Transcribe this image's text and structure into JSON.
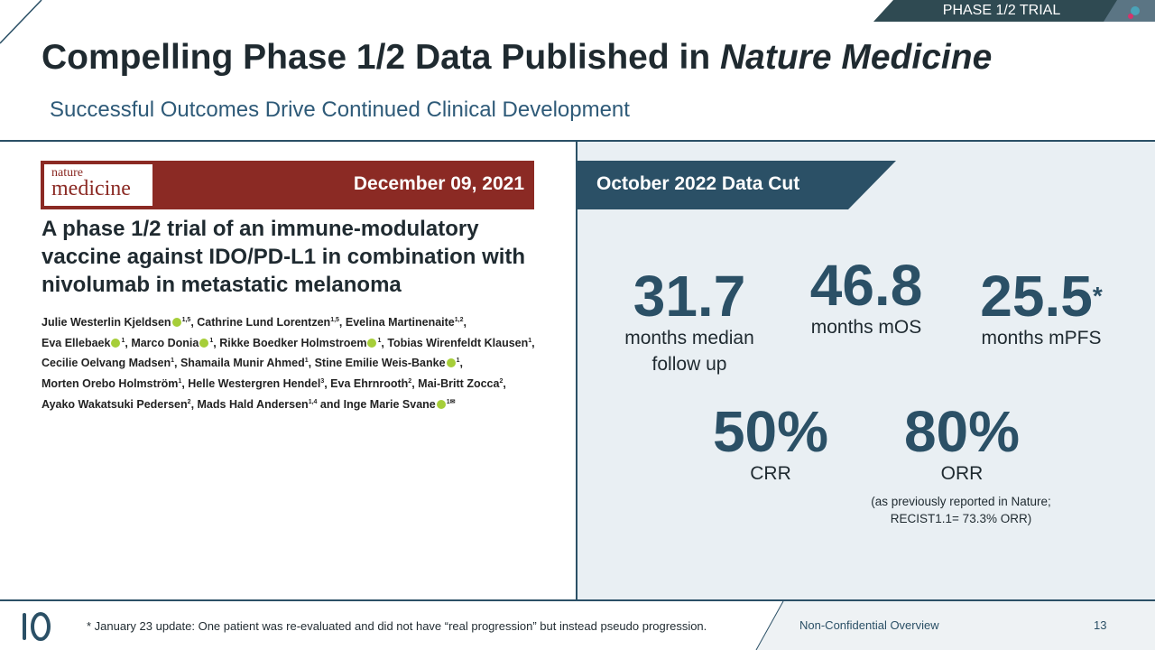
{
  "header": {
    "tag": "PHASE 1/2 TRIAL",
    "title": "Compelling Phase 1/2 Data Published in ",
    "title_italic": "Nature Medicine",
    "subtitle": "Successful Outcomes Drive Continued Clinical Development"
  },
  "paper": {
    "journal_line1": "nature",
    "journal_line2": "medicine",
    "date": "December 09, 2021",
    "title": "A phase 1/2 trial of an immune-modulatory vaccine against IDO/PD-L1 in combination with nivolumab in metastatic melanoma",
    "authors": [
      {
        "name": "Julie Westerlin Kjeldsen",
        "orcid": true,
        "sup": "1,5",
        "sep": ", "
      },
      {
        "name": "Cathrine Lund Lorentzen",
        "orcid": false,
        "sup": "1,5",
        "sep": ", "
      },
      {
        "name": "Evelina Martinenaite",
        "orcid": false,
        "sup": "1,2",
        "sep": ", "
      },
      {
        "name": "Eva Ellebaek",
        "orcid": true,
        "sup": "1",
        "sep": ", "
      },
      {
        "name": "Marco Donia",
        "orcid": true,
        "sup": "1",
        "sep": ", "
      },
      {
        "name": "Rikke Boedker Holmstroem",
        "orcid": true,
        "sup": "1",
        "sep": ", "
      },
      {
        "name": "Tobias Wirenfeldt Klausen",
        "orcid": false,
        "sup": "1",
        "sep": ", "
      },
      {
        "name": "Cecilie Oelvang Madsen",
        "orcid": false,
        "sup": "1",
        "sep": ", "
      },
      {
        "name": "Shamaila Munir Ahmed",
        "orcid": false,
        "sup": "1",
        "sep": ", "
      },
      {
        "name": "Stine Emilie Weis-Banke",
        "orcid": true,
        "sup": "1",
        "sep": ", "
      },
      {
        "name": "Morten Orebo Holmström",
        "orcid": false,
        "sup": "1",
        "sep": ", "
      },
      {
        "name": "Helle Westergren Hendel",
        "orcid": false,
        "sup": "3",
        "sep": ", "
      },
      {
        "name": "Eva Ehrnrooth",
        "orcid": false,
        "sup": "2",
        "sep": ", "
      },
      {
        "name": "Mai-Britt Zocca",
        "orcid": false,
        "sup": "2",
        "sep": ", "
      },
      {
        "name": "Ayako Wakatsuki Pedersen",
        "orcid": false,
        "sup": "2",
        "sep": ", "
      },
      {
        "name": "Mads Hald Andersen",
        "orcid": false,
        "sup": "1,4",
        "sep": " and "
      },
      {
        "name": "Inge Marie Svane",
        "orcid": true,
        "sup": "1✉",
        "sep": ""
      }
    ]
  },
  "data_cut": {
    "label": "October 2022 Data Cut",
    "stats": [
      {
        "value": "31.7",
        "label": "months median follow up",
        "star": ""
      },
      {
        "value": "46.8",
        "label": "months mOS",
        "star": ""
      },
      {
        "value": "25.5",
        "label": "months mPFS",
        "star": "*"
      },
      {
        "value": "50%",
        "label": "CRR",
        "star": ""
      },
      {
        "value": "80%",
        "label": "ORR",
        "star": ""
      }
    ],
    "note": "(as previously reported in Nature; RECIST1.1= 73.3% ORR)"
  },
  "footer": {
    "footnote": "* January 23 update: One patient was re-evaluated and did not have “real progression” but instead pseudo progression.",
    "confidentiality": "Non-Confidential Overview",
    "page": "13"
  },
  "colors": {
    "primary": "#2b5066",
    "journal": "#8b2a24",
    "panel": "#e9eff3",
    "orcid": "#a6ce39"
  }
}
